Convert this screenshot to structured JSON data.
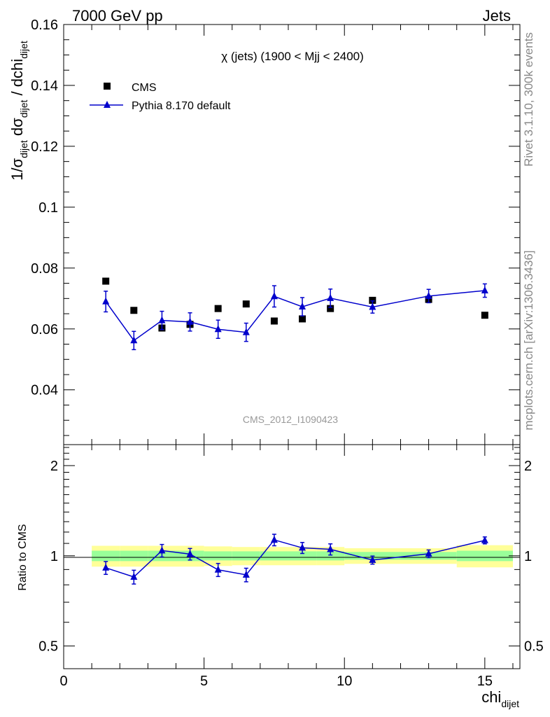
{
  "header": {
    "left": "7000 GeV pp",
    "right": "Jets"
  },
  "side_labels": {
    "rivet": "Rivet 3.1.10,  300k events",
    "source": "mcplots.cern.ch [arXiv:1306.3436]"
  },
  "main_panel": {
    "title": "χ (jets) (1900 < Mjj < 2400)",
    "watermark": "CMS_2012_I1090423",
    "ylabel": "1/σdijet dσdijet / dchidijet",
    "legend": {
      "data_label": "CMS",
      "mc_label": "Pythia 8.170 default",
      "position": "top-left"
    }
  },
  "ratio_panel": {
    "ylabel": "Ratio to CMS"
  },
  "xlabel": "chidijet",
  "colors": {
    "data": "#000000",
    "mc": "#0000cc",
    "band_inner": "#99ff99",
    "band_outer": "#ffff99"
  },
  "chart_data": [
    {
      "type": "scatter",
      "title": "χ (jets) (1900 < Mjj < 2400)",
      "xlabel": "chidijet",
      "ylabel": "1/σdijet dσdijet / dchidijet",
      "xlim": [
        0,
        16.25
      ],
      "ylim": [
        0.022,
        0.16
      ],
      "x_ticks": [
        "0",
        "5",
        "10",
        "15"
      ],
      "y_ticks": [
        "0.04",
        "0.06",
        "0.08",
        "0.1",
        "0.12",
        "0.14",
        "0.16"
      ],
      "bins": [
        [
          1,
          2
        ],
        [
          2,
          3
        ],
        [
          3,
          4
        ],
        [
          4,
          5
        ],
        [
          5,
          6
        ],
        [
          6,
          7
        ],
        [
          7,
          8
        ],
        [
          8,
          9
        ],
        [
          9,
          10
        ],
        [
          10,
          12
        ],
        [
          12,
          14
        ],
        [
          14,
          16
        ]
      ],
      "series": [
        {
          "name": "CMS",
          "marker": "square",
          "x": [
            1.5,
            2.5,
            3.5,
            4.5,
            5.5,
            6.5,
            7.5,
            8.5,
            9.5,
            11,
            13,
            15
          ],
          "y": [
            0.0757,
            0.0661,
            0.0603,
            0.0615,
            0.0667,
            0.0682,
            0.0626,
            0.0633,
            0.0667,
            0.0694,
            0.0697,
            0.0645
          ]
        },
        {
          "name": "Pythia 8.170 default",
          "marker": "triangle",
          "x": [
            1.5,
            2.5,
            3.5,
            4.5,
            5.5,
            6.5,
            7.5,
            8.5,
            9.5,
            11,
            13,
            15
          ],
          "y": [
            0.069,
            0.0562,
            0.0628,
            0.0623,
            0.0599,
            0.0589,
            0.0707,
            0.0673,
            0.0701,
            0.0672,
            0.0708,
            0.0726
          ],
          "yerr": [
            0.0034,
            0.003,
            0.003,
            0.003,
            0.003,
            0.003,
            0.0035,
            0.003,
            0.003,
            0.002,
            0.0022,
            0.0022
          ]
        }
      ]
    },
    {
      "type": "line",
      "title": "",
      "xlabel": "chidijet",
      "ylabel": "Ratio to CMS",
      "xlim": [
        0,
        16.25
      ],
      "ylim": [
        0.42,
        2.35
      ],
      "log_y": true,
      "y_ticks": [
        "0.5",
        "1",
        "2"
      ],
      "reference_line": 1,
      "bands": {
        "bins": [
          [
            1,
            2
          ],
          [
            2,
            3
          ],
          [
            3,
            4
          ],
          [
            4,
            5
          ],
          [
            5,
            6
          ],
          [
            6,
            7
          ],
          [
            7,
            8
          ],
          [
            8,
            9
          ],
          [
            9,
            10
          ],
          [
            10,
            12
          ],
          [
            12,
            14
          ],
          [
            14,
            16
          ]
        ],
        "inner": [
          0.04,
          0.04,
          0.04,
          0.04,
          0.035,
          0.035,
          0.035,
          0.035,
          0.035,
          0.03,
          0.03,
          0.04
        ],
        "outer": [
          0.08,
          0.08,
          0.08,
          0.08,
          0.075,
          0.07,
          0.07,
          0.07,
          0.07,
          0.06,
          0.06,
          0.085
        ]
      },
      "series": [
        {
          "name": "Pythia 8.170 default",
          "x": [
            1.5,
            2.5,
            3.5,
            4.5,
            5.5,
            6.5,
            7.5,
            8.5,
            9.5,
            11,
            13,
            15
          ],
          "y": [
            0.912,
            0.85,
            1.041,
            1.013,
            0.898,
            0.864,
            1.13,
            1.063,
            1.051,
            0.968,
            1.016,
            1.126
          ],
          "yerr": [
            0.045,
            0.045,
            0.05,
            0.045,
            0.045,
            0.045,
            0.05,
            0.045,
            0.045,
            0.03,
            0.03,
            0.03
          ]
        }
      ]
    }
  ]
}
